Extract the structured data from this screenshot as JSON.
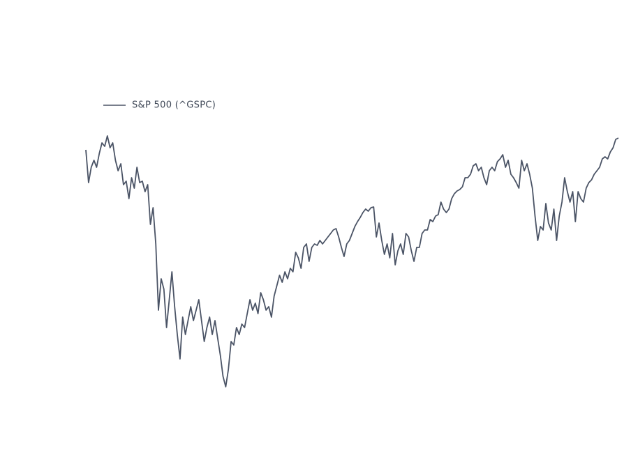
{
  "chart_data": {
    "type": "line",
    "series": [
      {
        "name": "S&P 500 (^GSPC)",
        "color": "#4b5466",
        "values": [
          385,
          338,
          360,
          370,
          360,
          380,
          395,
          390,
          405,
          388,
          395,
          370,
          355,
          365,
          335,
          340,
          315,
          345,
          330,
          360,
          338,
          340,
          325,
          335,
          278,
          302,
          250,
          155,
          200,
          185,
          130,
          170,
          210,
          160,
          120,
          85,
          145,
          120,
          140,
          160,
          140,
          155,
          170,
          140,
          110,
          130,
          145,
          120,
          140,
          115,
          90,
          60,
          45,
          70,
          110,
          105,
          130,
          120,
          135,
          130,
          150,
          170,
          155,
          165,
          150,
          180,
          170,
          155,
          160,
          145,
          175,
          190,
          205,
          195,
          210,
          200,
          215,
          210,
          238,
          230,
          215,
          245,
          250,
          225,
          245,
          250,
          248,
          255,
          250,
          255,
          260,
          265,
          270,
          272,
          260,
          245,
          232,
          250,
          255,
          265,
          275,
          282,
          288,
          295,
          300,
          297,
          302,
          303,
          260,
          280,
          255,
          235,
          250,
          230,
          265,
          220,
          240,
          250,
          235,
          265,
          260,
          240,
          225,
          245,
          245,
          265,
          270,
          270,
          285,
          282,
          290,
          292,
          310,
          300,
          295,
          300,
          315,
          322,
          326,
          328,
          332,
          345,
          345,
          350,
          362,
          365,
          355,
          360,
          345,
          335,
          355,
          360,
          355,
          368,
          372,
          378,
          360,
          370,
          350,
          345,
          338,
          330,
          370,
          355,
          365,
          350,
          330,
          290,
          255,
          275,
          270,
          308,
          280,
          270,
          300,
          255,
          290,
          310,
          345,
          325,
          310,
          325,
          282,
          325,
          315,
          310,
          330,
          338,
          342,
          350,
          355,
          360,
          372,
          375,
          372,
          382,
          388,
          400,
          402
        ]
      }
    ],
    "legend": "top-left"
  }
}
